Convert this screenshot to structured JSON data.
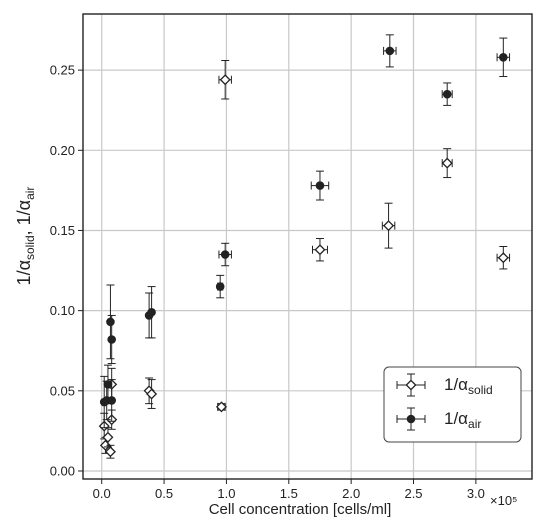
{
  "chart_data": {
    "type": "scatter",
    "title": "",
    "xlabel": "Cell concentration  [cells/ml]",
    "x_multiplier": "×10⁵",
    "ylabel": {
      "parts": [
        "1/α",
        "solid",
        ", 1/α",
        "air"
      ]
    },
    "xlim": [
      -0.15,
      3.45
    ],
    "ylim": [
      -0.005,
      0.285
    ],
    "grid": true,
    "legend_position": "lower-right",
    "x_ticks": [
      "0.0",
      "0.5",
      "1.0",
      "1.5",
      "2.0",
      "2.5",
      "3.0"
    ],
    "x_tick_values": [
      0.0,
      0.5,
      1.0,
      1.5,
      2.0,
      2.5,
      3.0
    ],
    "y_ticks": [
      "0.00",
      "0.05",
      "0.10",
      "0.15",
      "0.20",
      "0.25"
    ],
    "y_tick_values": [
      0.0,
      0.05,
      0.1,
      0.15,
      0.2,
      0.25
    ],
    "series": [
      {
        "name_main": "1/α",
        "name_sub": "solid",
        "marker": "open-diamond",
        "color": "#222222",
        "points": [
          {
            "x": 0.02,
            "y": 0.028,
            "yerr": 0.008,
            "xerr": 0.0
          },
          {
            "x": 0.03,
            "y": 0.016,
            "yerr": 0.005,
            "xerr": 0.0
          },
          {
            "x": 0.05,
            "y": 0.021,
            "yerr": 0.006,
            "xerr": 0.0
          },
          {
            "x": 0.07,
            "y": 0.012,
            "yerr": 0.004,
            "xerr": 0.0
          },
          {
            "x": 0.08,
            "y": 0.032,
            "yerr": 0.006,
            "xerr": 0.0
          },
          {
            "x": 0.08,
            "y": 0.054,
            "yerr": 0.01,
            "xerr": 0.0
          },
          {
            "x": 0.38,
            "y": 0.05,
            "yerr": 0.008,
            "xerr": 0.0
          },
          {
            "x": 0.4,
            "y": 0.048,
            "yerr": 0.009,
            "xerr": 0.0
          },
          {
            "x": 0.96,
            "y": 0.04,
            "yerr": 0.002,
            "xerr": 0.03
          },
          {
            "x": 0.99,
            "y": 0.244,
            "yerr": 0.012,
            "xerr": 0.05
          },
          {
            "x": 1.75,
            "y": 0.138,
            "yerr": 0.007,
            "xerr": 0.06
          },
          {
            "x": 2.3,
            "y": 0.153,
            "yerr": 0.014,
            "xerr": 0.05
          },
          {
            "x": 2.77,
            "y": 0.192,
            "yerr": 0.009,
            "xerr": 0.04
          },
          {
            "x": 3.22,
            "y": 0.133,
            "yerr": 0.007,
            "xerr": 0.05
          }
        ]
      },
      {
        "name_main": "1/α",
        "name_sub": "air",
        "marker": "filled-circle",
        "color": "#222222",
        "points": [
          {
            "x": 0.02,
            "y": 0.043,
            "yerr": 0.016,
            "xerr": 0.0
          },
          {
            "x": 0.04,
            "y": 0.044,
            "yerr": 0.012,
            "xerr": 0.0
          },
          {
            "x": 0.05,
            "y": 0.054,
            "yerr": 0.012,
            "xerr": 0.0
          },
          {
            "x": 0.07,
            "y": 0.093,
            "yerr": 0.023,
            "xerr": 0.0
          },
          {
            "x": 0.08,
            "y": 0.082,
            "yerr": 0.015,
            "xerr": 0.0
          },
          {
            "x": 0.08,
            "y": 0.044,
            "yerr": 0.013,
            "xerr": 0.0
          },
          {
            "x": 0.38,
            "y": 0.097,
            "yerr": 0.014,
            "xerr": 0.0
          },
          {
            "x": 0.4,
            "y": 0.099,
            "yerr": 0.016,
            "xerr": 0.0
          },
          {
            "x": 0.95,
            "y": 0.115,
            "yerr": 0.007,
            "xerr": 0.02
          },
          {
            "x": 0.99,
            "y": 0.135,
            "yerr": 0.007,
            "xerr": 0.05
          },
          {
            "x": 1.75,
            "y": 0.178,
            "yerr": 0.009,
            "xerr": 0.07
          },
          {
            "x": 2.31,
            "y": 0.262,
            "yerr": 0.01,
            "xerr": 0.05
          },
          {
            "x": 2.77,
            "y": 0.235,
            "yerr": 0.007,
            "xerr": 0.04
          },
          {
            "x": 3.22,
            "y": 0.258,
            "yerr": 0.012,
            "xerr": 0.05
          }
        ]
      }
    ]
  }
}
